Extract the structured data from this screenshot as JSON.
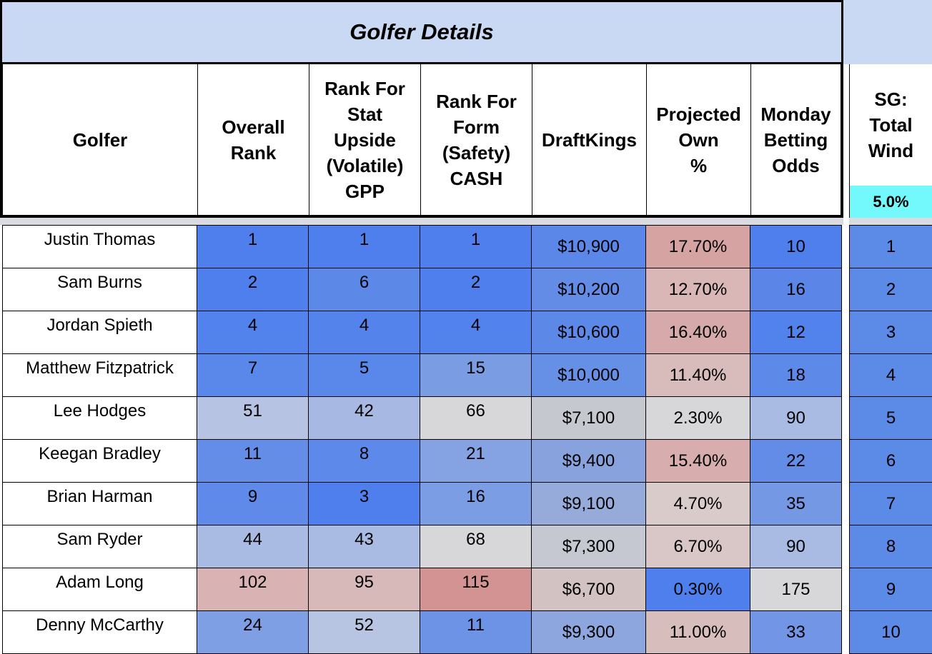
{
  "title": "Golfer Details",
  "headers": {
    "golfer": "Golfer",
    "overall_rank": "Overall\nRank",
    "stat_upside": "Rank For\nStat\nUpside\n(Volatile)\nGPP",
    "form_safety": "Rank For\nForm\n(Safety)\nCASH",
    "draftkings": "DraftKings",
    "projected_own": "Projected\nOwn\n%",
    "betting_odds": "Monday\nBetting\nOdds",
    "sg_total_wind": "SG:\nTotal\nWind",
    "sg_weight": "5.0%"
  },
  "colors": {
    "banner": "#cad9f3",
    "sg_weight_bg": "#73f9fb",
    "strong_blue": "#4f7fec",
    "pale_red": "#d9a9a9",
    "gray": "#d7d7d9"
  },
  "rows": [
    {
      "golfer": "Justin Thomas",
      "overall": "1",
      "stat": "1",
      "form": "1",
      "dk": "$10,900",
      "own": "17.70%",
      "odds": "10",
      "sg": "1",
      "c": [
        "#4f7fec",
        "#4f7fec",
        "#4f7fec",
        "#5a87e8",
        "#d6a3a3",
        "#4f7fec"
      ]
    },
    {
      "golfer": "Sam Burns",
      "overall": "2",
      "stat": "6",
      "form": "2",
      "dk": "$10,200",
      "own": "12.70%",
      "odds": "16",
      "sg": "2",
      "c": [
        "#4f7fec",
        "#5c88e8",
        "#4f7fec",
        "#638ce6",
        "#d9b7b7",
        "#5b86e8"
      ]
    },
    {
      "golfer": "Jordan Spieth",
      "overall": "4",
      "stat": "4",
      "form": "4",
      "dk": "$10,600",
      "own": "16.40%",
      "odds": "12",
      "sg": "3",
      "c": [
        "#5282ec",
        "#5383eb",
        "#5282ec",
        "#5c88e8",
        "#d6aaaa",
        "#5282ec"
      ]
    },
    {
      "golfer": "Matthew Fitzpatrick",
      "overall": "7",
      "stat": "5",
      "form": "15",
      "dk": "$10,000",
      "own": "11.40%",
      "odds": "18",
      "sg": "4",
      "c": [
        "#5a87ea",
        "#5a87ea",
        "#7a9ce3",
        "#668fe6",
        "#d8bcbc",
        "#5d89e8"
      ]
    },
    {
      "golfer": "Lee Hodges",
      "overall": "51",
      "stat": "42",
      "form": "66",
      "dk": "$7,100",
      "own": "2.30%",
      "odds": "90",
      "sg": "5",
      "c": [
        "#b6c3e2",
        "#a7b8e2",
        "#d7d7d9",
        "#c6c8cf",
        "#d7d7d9",
        "#a9bbe3"
      ]
    },
    {
      "golfer": "Keegan Bradley",
      "overall": "11",
      "stat": "8",
      "form": "21",
      "dk": "$9,400",
      "own": "15.40%",
      "odds": "22",
      "sg": "6",
      "c": [
        "#648de8",
        "#5d89ea",
        "#85a2e2",
        "#88a2dd",
        "#d7adad",
        "#638ce7"
      ]
    },
    {
      "golfer": "Brian Harman",
      "overall": "9",
      "stat": "3",
      "form": "16",
      "dk": "$9,100",
      "own": "4.70%",
      "odds": "35",
      "sg": "7",
      "c": [
        "#5f8aea",
        "#4f7fec",
        "#7b9de3",
        "#97abdb",
        "#dacbcb",
        "#7598e4"
      ]
    },
    {
      "golfer": "Sam Ryder",
      "overall": "44",
      "stat": "43",
      "form": "68",
      "dk": "$7,300",
      "own": "6.70%",
      "odds": "90",
      "sg": "8",
      "c": [
        "#a9bae3",
        "#a9bae3",
        "#d7d7d9",
        "#c5c8d0",
        "#d9c6c6",
        "#a9bbe3"
      ]
    },
    {
      "golfer": "Adam Long",
      "overall": "102",
      "stat": "95",
      "form": "115",
      "dk": "$6,700",
      "own": "0.30%",
      "odds": "175",
      "sg": "9",
      "c": [
        "#d9b3b3",
        "#d8b9b9",
        "#d49393",
        "#d3c2c2",
        "#4f7fec",
        "#d7d7d9"
      ]
    },
    {
      "golfer": "Denny McCarthy",
      "overall": "24",
      "stat": "52",
      "form": "11",
      "dk": "$9,300",
      "own": "11.00%",
      "odds": "33",
      "sg": "10",
      "c": [
        "#7f9fe4",
        "#b7c4e2",
        "#6d93e6",
        "#8da6dd",
        "#d8bdbd",
        "#7296e5"
      ]
    }
  ]
}
